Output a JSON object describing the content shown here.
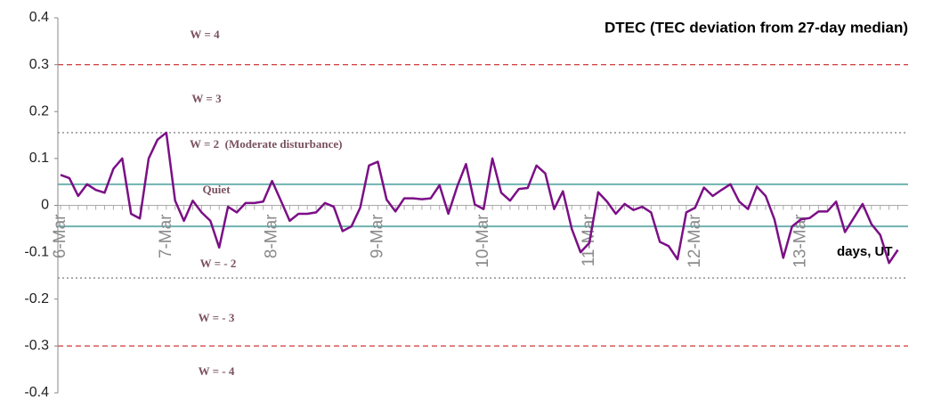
{
  "chart_data": {
    "type": "line",
    "title": "DTEC (TEC deviation from 27-day median)",
    "x_label": "days, UT",
    "categories": [
      "6-Mar",
      null,
      null,
      null,
      null,
      null,
      null,
      null,
      null,
      null,
      null,
      null,
      "7-Mar",
      null,
      null,
      null,
      null,
      null,
      null,
      null,
      null,
      null,
      null,
      null,
      "8-Mar",
      null,
      null,
      null,
      null,
      null,
      null,
      null,
      null,
      null,
      null,
      null,
      "9-Mar",
      null,
      null,
      null,
      null,
      null,
      null,
      null,
      null,
      null,
      null,
      null,
      "10-Mar",
      null,
      null,
      null,
      null,
      null,
      null,
      null,
      null,
      null,
      null,
      null,
      "11-Mar",
      null,
      null,
      null,
      null,
      null,
      null,
      null,
      null,
      null,
      null,
      null,
      "12-Mar",
      null,
      null,
      null,
      null,
      null,
      null,
      null,
      null,
      null,
      null,
      null,
      "13-Mar",
      null,
      null,
      null,
      null,
      null,
      null,
      null,
      null,
      null,
      null,
      null
    ],
    "series": [
      {
        "name": "DTEC",
        "color": "#7b0f86",
        "values": [
          0.065,
          0.058,
          0.02,
          0.045,
          0.033,
          0.027,
          0.078,
          0.1,
          -0.018,
          -0.028,
          0.1,
          0.14,
          0.155,
          0.01,
          -0.033,
          0.01,
          -0.015,
          -0.033,
          -0.09,
          -0.003,
          -0.015,
          0.005,
          0.005,
          0.008,
          0.052,
          0.01,
          -0.033,
          -0.018,
          -0.018,
          -0.015,
          0.005,
          -0.003,
          -0.055,
          -0.045,
          -0.005,
          0.085,
          0.093,
          0.012,
          -0.013,
          0.015,
          0.015,
          0.013,
          0.015,
          0.043,
          -0.018,
          0.04,
          0.088,
          0.002,
          -0.008,
          0.1,
          0.027,
          0.01,
          0.035,
          0.037,
          0.085,
          0.068,
          -0.008,
          0.03,
          -0.05,
          -0.1,
          -0.08,
          0.028,
          0.008,
          -0.018,
          0.003,
          -0.01,
          -0.003,
          -0.015,
          -0.078,
          -0.087,
          -0.115,
          -0.015,
          -0.005,
          0.038,
          0.02,
          0.033,
          0.045,
          0.008,
          -0.008,
          0.04,
          0.02,
          -0.03,
          -0.112,
          -0.045,
          -0.03,
          -0.027,
          -0.013,
          -0.013,
          0.008,
          -0.057,
          -0.027,
          0.003,
          -0.04,
          -0.063,
          -0.123,
          -0.095
        ]
      }
    ],
    "ylim": [
      -0.4,
      0.4
    ],
    "yticks": [
      0.4,
      0.3,
      0.2,
      0.1,
      0,
      -0.1,
      -0.2,
      -0.3,
      -0.4
    ],
    "reference_lines": [
      {
        "value": 0.3,
        "color": "#d03a3a",
        "style": "dashed"
      },
      {
        "value": 0.155,
        "color": "#888888",
        "style": "dotted"
      },
      {
        "value": 0.045,
        "color": "#6fb3b0",
        "style": "solid"
      },
      {
        "value": -0.045,
        "color": "#6fb3b0",
        "style": "solid"
      },
      {
        "value": -0.155,
        "color": "#888888",
        "style": "dotted"
      },
      {
        "value": -0.3,
        "color": "#d03a3a",
        "style": "dashed"
      }
    ],
    "annotations": [
      "W = 4",
      "W = 3",
      "W = 2  (Moderate disturbance)",
      "Quiet",
      "W = - 2",
      "W = - 3",
      "W = - 4"
    ]
  }
}
